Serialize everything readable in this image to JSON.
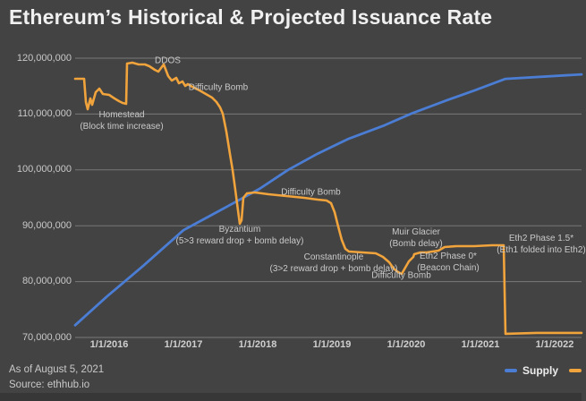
{
  "header": {
    "title": "Ethereum’s Historical & Projected Issuance Rate"
  },
  "footer": {
    "as_of": "As of August 5, 2021",
    "source": "Source: ethhub.io"
  },
  "legend": {
    "position": "bottom-right",
    "entries": [
      {
        "label": "Supply",
        "color": "#4a7dd3"
      },
      {
        "label": "",
        "color": "#f1a33c"
      }
    ]
  },
  "colors": {
    "background": "#434343",
    "gridline": "#787878",
    "supply_line": "#4a7dd3",
    "issuance_line": "#f1a33c",
    "title_text": "#f0f0f0",
    "axis_text": "#cfcfcf",
    "annotation_text": "#c9c9c9"
  },
  "chart_data": {
    "type": "line",
    "title": "Ethereum’s Historical & Projected Issuance Rate",
    "xlabel": "",
    "ylabel": "",
    "values_unit": "millions of ETH (left axis)",
    "x_range_years": [
      2015.52,
      2022.36
    ],
    "y_range_millions": [
      70,
      120
    ],
    "grid": "horizontal-only",
    "legend_position": "bottom-right",
    "y_ticks": [
      {
        "label": "120,000,000",
        "value": 120
      },
      {
        "label": "110,000,000",
        "value": 110
      },
      {
        "label": "100,000,000",
        "value": 100
      },
      {
        "label": "90,000,000",
        "value": 90
      },
      {
        "label": "80,000,000",
        "value": 80
      },
      {
        "label": "70,000,000",
        "value": 70
      }
    ],
    "x_ticks": [
      {
        "label": "1/1/2016",
        "value": 2016
      },
      {
        "label": "1/1/2017",
        "value": 2017
      },
      {
        "label": "1/1/2018",
        "value": 2018
      },
      {
        "label": "1/1/2019",
        "value": 2019
      },
      {
        "label": "1/1/2020",
        "value": 2020
      },
      {
        "label": "1/1/2021",
        "value": 2021
      },
      {
        "label": "1/1/2022",
        "value": 2022
      }
    ],
    "series": [
      {
        "name": "Supply",
        "color": "#4a7dd3",
        "width": 2.8,
        "points": [
          [
            2015.542,
            72.2
          ],
          [
            2015.976,
            77.4
          ],
          [
            2016.458,
            82.8
          ],
          [
            2017.0,
            89.2
          ],
          [
            2017.542,
            93.1
          ],
          [
            2018.024,
            96.6
          ],
          [
            2018.41,
            100.0
          ],
          [
            2018.807,
            102.9
          ],
          [
            2019.229,
            105.6
          ],
          [
            2019.711,
            108.0
          ],
          [
            2020.072,
            110.1
          ],
          [
            2020.554,
            112.5
          ],
          [
            2020.916,
            114.2
          ],
          [
            2021.337,
            116.3
          ],
          [
            2022.361,
            117.1
          ]
        ]
      },
      {
        "name": "",
        "color": "#f1a33c",
        "width": 2.6,
        "points": [
          [
            2015.542,
            116.31
          ],
          [
            2015.663,
            116.31
          ],
          [
            2015.687,
            112.15
          ],
          [
            2015.711,
            110.87
          ],
          [
            2015.747,
            112.79
          ],
          [
            2015.771,
            111.67
          ],
          [
            2015.819,
            113.91
          ],
          [
            2015.867,
            114.55
          ],
          [
            2015.916,
            113.59
          ],
          [
            2016.0,
            113.43
          ],
          [
            2016.072,
            112.79
          ],
          [
            2016.133,
            112.31
          ],
          [
            2016.181,
            111.99
          ],
          [
            2016.229,
            111.83
          ],
          [
            2016.241,
            119.04
          ],
          [
            2016.313,
            119.2
          ],
          [
            2016.398,
            118.88
          ],
          [
            2016.482,
            118.88
          ],
          [
            2016.542,
            118.56
          ],
          [
            2016.614,
            117.92
          ],
          [
            2016.663,
            117.6
          ],
          [
            2016.735,
            118.88
          ],
          [
            2016.795,
            116.79
          ],
          [
            2016.843,
            115.99
          ],
          [
            2016.904,
            116.47
          ],
          [
            2016.94,
            115.51
          ],
          [
            2016.988,
            115.83
          ],
          [
            2017.024,
            115.03
          ],
          [
            2017.06,
            115.35
          ],
          [
            2017.12,
            114.87
          ],
          [
            2017.217,
            114.23
          ],
          [
            2017.301,
            113.59
          ],
          [
            2017.386,
            112.95
          ],
          [
            2017.446,
            112.15
          ],
          [
            2017.494,
            111.19
          ],
          [
            2017.53,
            110.06
          ],
          [
            2017.578,
            106.86
          ],
          [
            2017.627,
            102.85
          ],
          [
            2017.663,
            99.97
          ],
          [
            2017.699,
            96.44
          ],
          [
            2017.735,
            92.76
          ],
          [
            2017.759,
            90.36
          ],
          [
            2017.783,
            91.0
          ],
          [
            2017.807,
            95.0
          ],
          [
            2017.855,
            95.8
          ],
          [
            2017.964,
            95.96
          ],
          [
            2018.145,
            95.64
          ],
          [
            2018.386,
            95.32
          ],
          [
            2018.627,
            95.0
          ],
          [
            2018.807,
            94.68
          ],
          [
            2018.928,
            94.52
          ],
          [
            2018.988,
            94.04
          ],
          [
            2019.036,
            92.44
          ],
          [
            2019.084,
            89.87
          ],
          [
            2019.133,
            87.47
          ],
          [
            2019.181,
            85.87
          ],
          [
            2019.229,
            85.38
          ],
          [
            2019.41,
            85.22
          ],
          [
            2019.59,
            85.06
          ],
          [
            2019.687,
            84.42
          ],
          [
            2019.771,
            83.46
          ],
          [
            2019.831,
            82.34
          ],
          [
            2019.892,
            81.7
          ],
          [
            2019.94,
            81.38
          ],
          [
            2019.988,
            82.5
          ],
          [
            2020.036,
            83.62
          ],
          [
            2020.096,
            84.42
          ],
          [
            2020.108,
            84.9
          ],
          [
            2020.193,
            85.22
          ],
          [
            2020.277,
            85.22
          ],
          [
            2020.434,
            85.55
          ],
          [
            2020.518,
            86.19
          ],
          [
            2020.675,
            86.35
          ],
          [
            2020.916,
            86.35
          ],
          [
            2021.157,
            86.51
          ],
          [
            2021.313,
            86.51
          ],
          [
            2021.337,
            70.65
          ],
          [
            2021.759,
            70.81
          ],
          [
            2022.361,
            70.81
          ]
        ]
      }
    ],
    "annotations": [
      {
        "x": 2016.169,
        "y": 108.78,
        "lines": [
          "Homestead",
          "(Block time increase)"
        ]
      },
      {
        "x": 2016.789,
        "y": 119.45,
        "lines": [
          "DDOS"
        ]
      },
      {
        "x": 2017.47,
        "y": 114.79,
        "lines": [
          "Difficulty Bomb"
        ]
      },
      {
        "x": 2017.759,
        "y": 88.27,
        "lines": [
          "Byzantium",
          "(5>3 reward drop + bomb delay)"
        ]
      },
      {
        "x": 2018.717,
        "y": 95.96,
        "lines": [
          "Difficulty Bomb"
        ]
      },
      {
        "x": 2019.024,
        "y": 83.37,
        "lines": [
          "Constantinople",
          "(3>2 reward drop + bomb delay)"
        ]
      },
      {
        "x": 2019.934,
        "y": 81.05,
        "lines": [
          "Difficulty Bomb"
        ]
      },
      {
        "x": 2020.133,
        "y": 87.86,
        "lines": [
          "Muir Glacier",
          "(Bomb delay)"
        ]
      },
      {
        "x": 2020.566,
        "y": 83.45,
        "lines": [
          "Eth2 Phase 0*",
          "(Beacon Chain)"
        ]
      },
      {
        "x": 2021.819,
        "y": 86.74,
        "lines": [
          "Eth2 Phase 1.5*",
          "(Eth1 folded into Eth2)"
        ]
      }
    ]
  }
}
